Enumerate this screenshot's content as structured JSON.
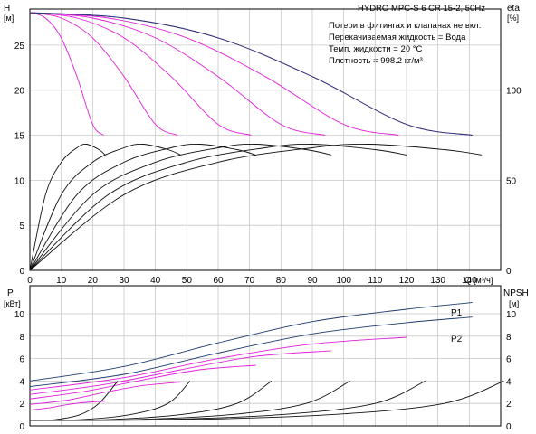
{
  "header": {
    "title": "HYDRO MPC-S 6 CR 15-2, 50Hz",
    "notes": [
      "Потери в фитингах и клапанах не вкл.",
      "Перекачиваемая жидкость = Вода",
      "Темп. жидкости = 20 °C",
      "Плотность = 998.2 кг/м³"
    ]
  },
  "colors": {
    "qh_curve": "#e020d8",
    "envelope_curve": "#1d3a6e",
    "efficiency_curve": "#111111",
    "npsh_curve": "#111111",
    "grid": "#c8c8c8"
  },
  "chart_data": [
    {
      "type": "line",
      "name": "QH",
      "y_label": "H",
      "y_unit": "[м]",
      "y2_label": "eta",
      "y2_unit": "[%]",
      "xlim": [
        0,
        150
      ],
      "ylim": [
        0,
        29
      ],
      "y2lim": [
        0,
        145
      ],
      "x_ticks": [
        0,
        10,
        20,
        30,
        40,
        50,
        60,
        70,
        80,
        90,
        100,
        110,
        120,
        130,
        140
      ],
      "y_ticks": [
        0,
        5,
        10,
        15,
        20,
        25
      ],
      "y2_ticks": [
        0,
        50,
        100
      ],
      "qh_pumps": [
        {
          "pumps": 1,
          "points": [
            [
              0,
              28.6
            ],
            [
              5,
              28.0
            ],
            [
              10,
              25.8
            ],
            [
              15,
              21.5
            ],
            [
              20,
              16.2
            ],
            [
              23.5,
              15.0
            ]
          ]
        },
        {
          "pumps": 2,
          "points": [
            [
              0,
              28.6
            ],
            [
              10,
              28.0
            ],
            [
              20,
              25.8
            ],
            [
              30,
              21.5
            ],
            [
              40,
              16.2
            ],
            [
              47,
              15.0
            ]
          ]
        },
        {
          "pumps": 3,
          "points": [
            [
              0,
              28.6
            ],
            [
              15,
              28.0
            ],
            [
              30,
              25.8
            ],
            [
              45,
              21.5
            ],
            [
              60,
              16.2
            ],
            [
              70.5,
              15.0
            ]
          ]
        },
        {
          "pumps": 4,
          "points": [
            [
              0,
              28.6
            ],
            [
              20,
              28.0
            ],
            [
              40,
              25.8
            ],
            [
              60,
              21.5
            ],
            [
              80,
              16.2
            ],
            [
              94,
              15.0
            ]
          ]
        },
        {
          "pumps": 5,
          "points": [
            [
              0,
              28.6
            ],
            [
              25,
              28.0
            ],
            [
              50,
              25.8
            ],
            [
              75,
              21.5
            ],
            [
              100,
              16.2
            ],
            [
              117.5,
              15.0
            ]
          ]
        },
        {
          "pumps": 6,
          "points": [
            [
              0,
              28.6
            ],
            [
              30,
              28.0
            ],
            [
              60,
              25.8
            ],
            [
              90,
              21.5
            ],
            [
              120,
              16.2
            ],
            [
              141,
              15.0
            ]
          ]
        }
      ],
      "qh_envelope": [
        [
          0,
          28.6
        ],
        [
          30,
          28.0
        ],
        [
          60,
          25.8
        ],
        [
          90,
          21.5
        ],
        [
          120,
          16.2
        ],
        [
          141,
          15.0
        ]
      ],
      "efficiency": [
        {
          "pumps": 1,
          "points": [
            [
              0,
              0
            ],
            [
              5,
              42
            ],
            [
              10,
              60
            ],
            [
              15,
              68
            ],
            [
              18,
              70
            ],
            [
              22,
              67
            ],
            [
              24,
              64
            ]
          ]
        },
        {
          "pumps": 2,
          "points": [
            [
              0,
              0
            ],
            [
              10,
              42
            ],
            [
              20,
              60
            ],
            [
              30,
              68
            ],
            [
              36,
              70
            ],
            [
              44,
              67
            ],
            [
              48,
              64
            ]
          ]
        },
        {
          "pumps": 3,
          "points": [
            [
              0,
              0
            ],
            [
              15,
              42
            ],
            [
              30,
              60
            ],
            [
              45,
              68
            ],
            [
              54,
              70
            ],
            [
              66,
              67
            ],
            [
              72,
              64
            ]
          ]
        },
        {
          "pumps": 4,
          "points": [
            [
              0,
              0
            ],
            [
              20,
              42
            ],
            [
              40,
              60
            ],
            [
              60,
              68
            ],
            [
              72,
              70
            ],
            [
              88,
              67
            ],
            [
              96,
              64
            ]
          ]
        },
        {
          "pumps": 5,
          "points": [
            [
              0,
              0
            ],
            [
              25,
              42
            ],
            [
              50,
              60
            ],
            [
              75,
              68
            ],
            [
              90,
              70
            ],
            [
              110,
              67
            ],
            [
              120,
              64
            ]
          ]
        },
        {
          "pumps": 6,
          "points": [
            [
              0,
              0
            ],
            [
              30,
              42
            ],
            [
              60,
              60
            ],
            [
              90,
              68
            ],
            [
              108,
              70
            ],
            [
              132,
              67
            ],
            [
              144,
              64
            ]
          ]
        }
      ]
    },
    {
      "type": "line",
      "name": "P / NPSH",
      "y_label": "P",
      "y_unit": "[кВт]",
      "y2_label": "NPSH",
      "y2_unit": "[м]",
      "xlim": [
        0,
        150
      ],
      "ylim": [
        0,
        12.5
      ],
      "y2lim": [
        0,
        12.5
      ],
      "y_ticks": [
        0,
        2,
        4,
        6,
        8,
        10
      ],
      "y2_ticks": [
        0,
        2,
        4,
        6,
        8,
        10
      ],
      "series_labels": [
        "P1",
        "P2"
      ],
      "p1_envelope": [
        [
          0,
          4.0
        ],
        [
          30,
          5.3
        ],
        [
          60,
          7.4
        ],
        [
          90,
          9.3
        ],
        [
          120,
          10.4
        ],
        [
          141,
          11.0
        ]
      ],
      "p2_envelope": [
        [
          0,
          3.5
        ],
        [
          30,
          4.6
        ],
        [
          60,
          6.5
        ],
        [
          90,
          8.2
        ],
        [
          120,
          9.2
        ],
        [
          141,
          9.7
        ]
      ],
      "power_pumps": [
        {
          "pumps": 1,
          "points": [
            [
              0,
              1.4
            ],
            [
              6,
              1.6
            ],
            [
              12,
              1.9
            ],
            [
              18,
              2.1
            ],
            [
              24,
              2.2
            ]
          ]
        },
        {
          "pumps": 2,
          "points": [
            [
              0,
              1.9
            ],
            [
              12,
              2.3
            ],
            [
              24,
              3.0
            ],
            [
              36,
              3.6
            ],
            [
              48,
              3.9
            ]
          ]
        },
        {
          "pumps": 3,
          "points": [
            [
              0,
              2.4
            ],
            [
              18,
              3.1
            ],
            [
              36,
              4.1
            ],
            [
              54,
              5.0
            ],
            [
              72,
              5.4
            ]
          ]
        },
        {
          "pumps": 4,
          "points": [
            [
              0,
              2.8
            ],
            [
              24,
              3.7
            ],
            [
              48,
              5.0
            ],
            [
              72,
              6.2
            ],
            [
              96,
              6.7
            ]
          ]
        },
        {
          "pumps": 5,
          "points": [
            [
              0,
              3.2
            ],
            [
              30,
              4.3
            ],
            [
              60,
              6.0
            ],
            [
              90,
              7.3
            ],
            [
              120,
              7.9
            ]
          ]
        }
      ],
      "npsh": [
        {
          "pumps": 1,
          "points": [
            [
              0,
              0.5
            ],
            [
              8,
              0.55
            ],
            [
              16,
              1.0
            ],
            [
              22,
              2.0
            ],
            [
              28,
              4.0
            ]
          ]
        },
        {
          "pumps": 2,
          "points": [
            [
              0,
              0.5
            ],
            [
              16,
              0.55
            ],
            [
              32,
              1.0
            ],
            [
              44,
              2.0
            ],
            [
              51,
              4.0
            ]
          ]
        },
        {
          "pumps": 3,
          "points": [
            [
              0,
              0.5
            ],
            [
              24,
              0.55
            ],
            [
              48,
              1.0
            ],
            [
              66,
              2.0
            ],
            [
              77,
              4.0
            ]
          ]
        },
        {
          "pumps": 4,
          "points": [
            [
              0,
              0.5
            ],
            [
              32,
              0.55
            ],
            [
              64,
              1.0
            ],
            [
              88,
              2.0
            ],
            [
              102,
              4.0
            ]
          ]
        },
        {
          "pumps": 5,
          "points": [
            [
              0,
              0.5
            ],
            [
              40,
              0.55
            ],
            [
              80,
              1.0
            ],
            [
              110,
              2.0
            ],
            [
              126,
              4.0
            ]
          ]
        },
        {
          "pumps": 6,
          "points": [
            [
              0,
              0.5
            ],
            [
              48,
              0.55
            ],
            [
              96,
              1.0
            ],
            [
              132,
              2.0
            ],
            [
              151,
              4.0
            ]
          ]
        }
      ]
    }
  ],
  "x_axis": {
    "label": "Q",
    "unit": "[м³/ч]"
  }
}
